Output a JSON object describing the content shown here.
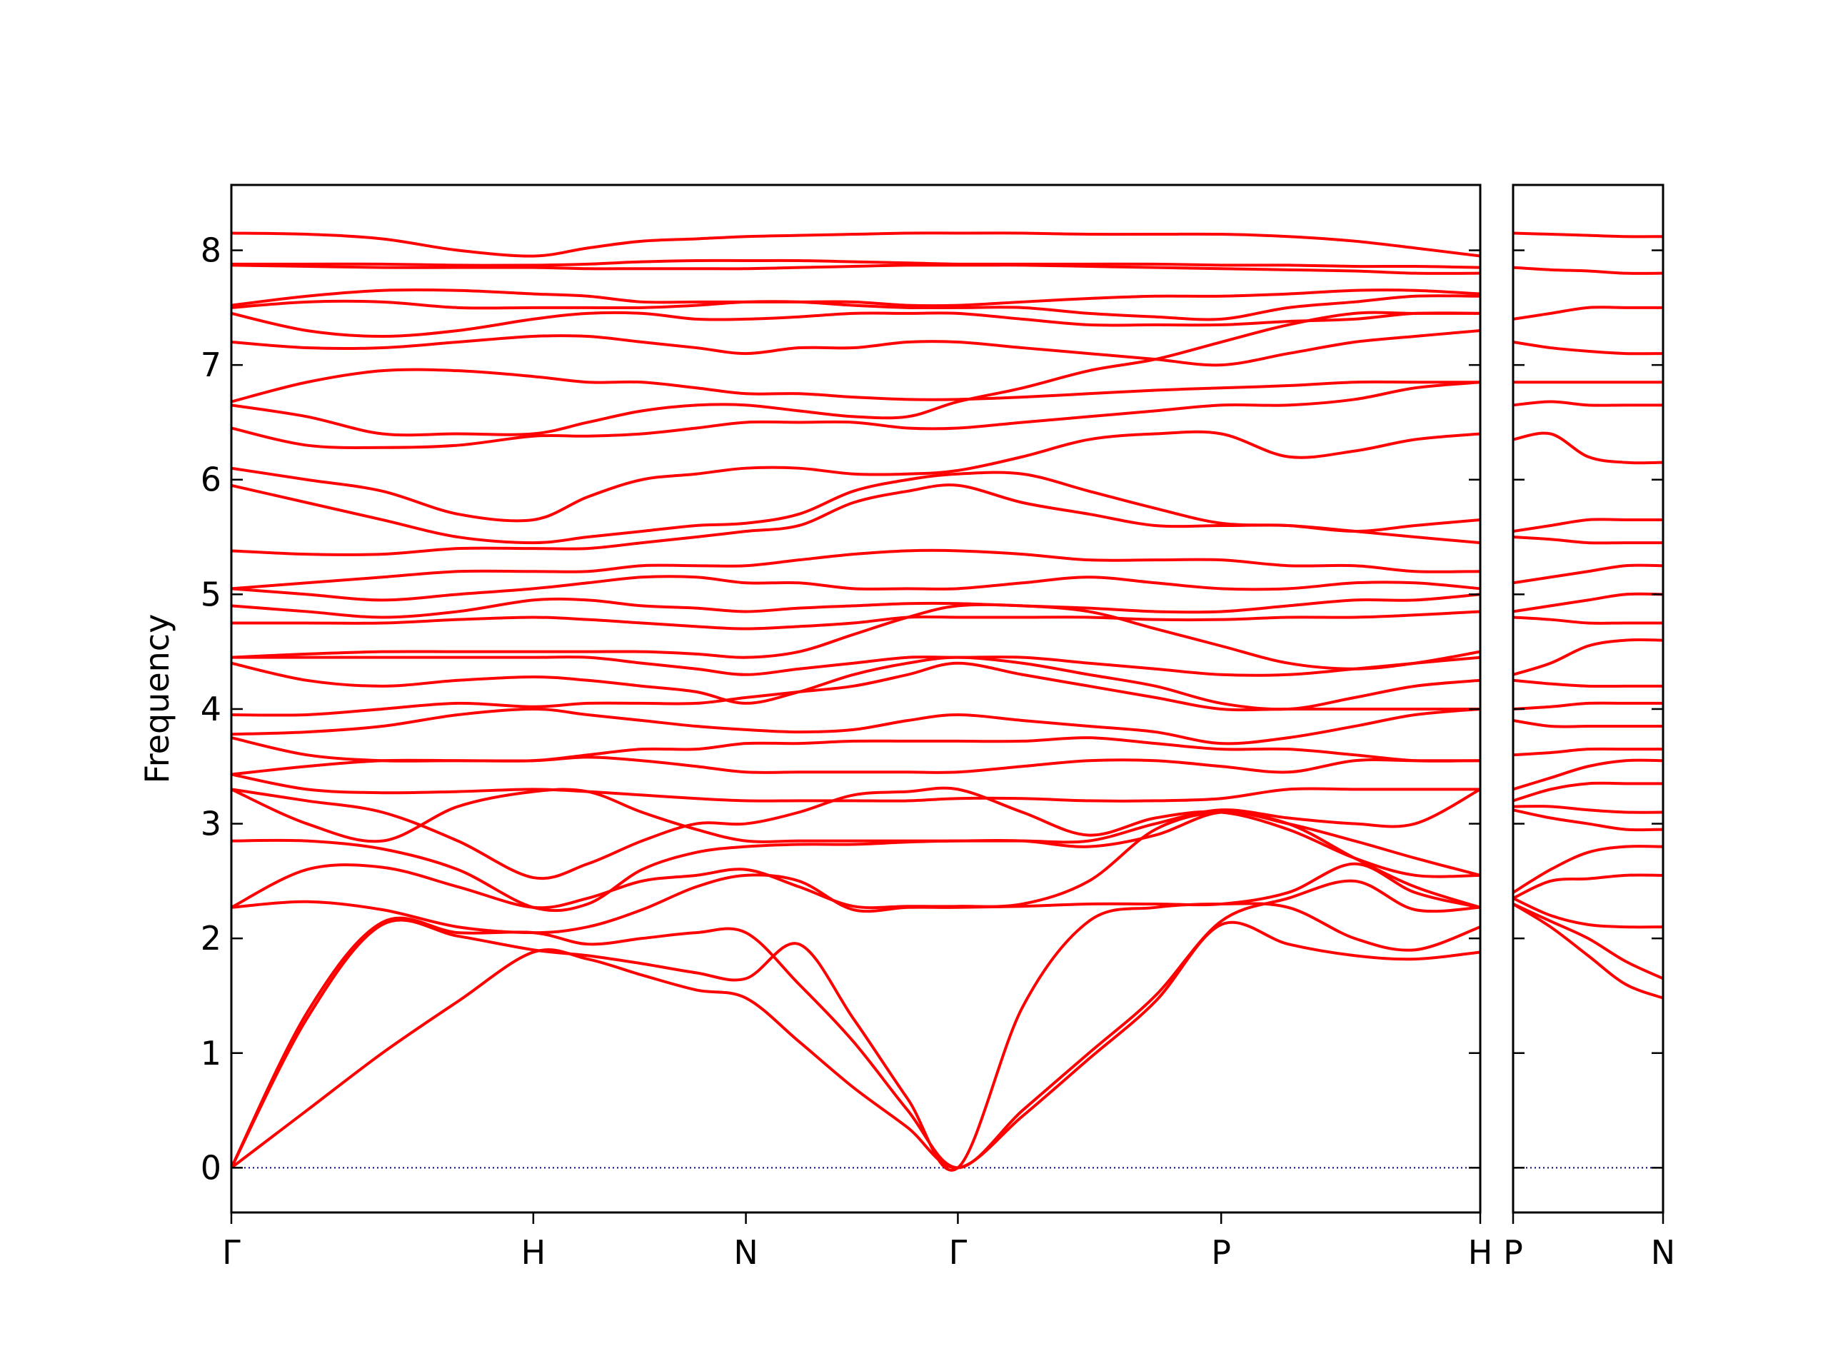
{
  "chart_data": [
    {
      "type": "line",
      "ylabel": "Frequency",
      "color": "#ff0000",
      "hline": 0,
      "hline_color": "#00008b",
      "x": [
        0,
        0.125,
        0.25,
        0.375,
        0.5,
        0.59,
        0.68,
        0.77,
        0.852,
        0.94,
        1.03,
        1.12,
        1.203,
        1.31,
        1.42,
        1.53,
        1.639,
        1.75,
        1.86,
        1.96,
        2.068
      ],
      "xlim": [
        0,
        2.068
      ],
      "xticks": [
        {
          "value": 0,
          "label": "Γ"
        },
        {
          "value": 0.5,
          "label": "H"
        },
        {
          "value": 0.852,
          "label": "N"
        },
        {
          "value": 1.203,
          "label": "Γ"
        },
        {
          "value": 1.639,
          "label": "P"
        },
        {
          "value": 2.068,
          "label": "H"
        }
      ],
      "ylim": [
        -0.39,
        8.57
      ],
      "yticks": [
        0,
        1,
        2,
        3,
        4,
        5,
        6,
        7,
        8
      ],
      "show_ytick_labels": true,
      "series": [
        {
          "values": [
            0,
            0.5,
            1.0,
            1.45,
            1.88,
            1.82,
            1.68,
            1.55,
            1.48,
            1.1,
            0.7,
            0.35,
            0,
            0.45,
            0.95,
            1.45,
            2.12,
            1.95,
            1.85,
            1.82,
            1.88
          ]
        },
        {
          "values": [
            0,
            1.3,
            2.12,
            2.02,
            1.9,
            1.85,
            1.78,
            1.7,
            1.65,
            1.95,
            1.3,
            0.6,
            0,
            1.4,
            2.15,
            2.27,
            2.3,
            2.27,
            2.0,
            1.9,
            2.1
          ]
        },
        {
          "values": [
            0,
            1.35,
            2.14,
            2.05,
            2.05,
            1.95,
            2.0,
            2.05,
            2.05,
            1.6,
            1.1,
            0.5,
            0,
            0.5,
            1.0,
            1.5,
            2.15,
            2.35,
            2.5,
            2.25,
            2.27
          ]
        },
        {
          "values": [
            2.27,
            2.32,
            2.25,
            2.1,
            2.05,
            2.1,
            2.25,
            2.45,
            2.55,
            2.5,
            2.25,
            2.27,
            2.27,
            2.28,
            2.3,
            2.3,
            2.3,
            2.4,
            2.65,
            2.4,
            2.27
          ]
        },
        {
          "values": [
            2.27,
            2.6,
            2.62,
            2.45,
            2.27,
            2.35,
            2.5,
            2.55,
            2.6,
            2.45,
            2.28,
            2.28,
            2.28,
            2.3,
            2.5,
            2.95,
            3.1,
            3.0,
            2.7,
            2.45,
            2.27
          ]
        },
        {
          "values": [
            2.85,
            2.85,
            2.78,
            2.6,
            2.27,
            2.3,
            2.6,
            2.75,
            2.8,
            2.82,
            2.82,
            2.84,
            2.85,
            2.85,
            2.8,
            2.9,
            3.1,
            3.0,
            2.85,
            2.7,
            2.55
          ]
        },
        {
          "values": [
            3.3,
            3.0,
            2.85,
            3.15,
            3.28,
            3.28,
            3.1,
            2.95,
            2.85,
            2.85,
            2.85,
            2.85,
            2.85,
            2.85,
            2.85,
            3.0,
            3.12,
            3.05,
            3.0,
            3.0,
            3.3
          ]
        },
        {
          "values": [
            3.3,
            3.2,
            3.1,
            2.85,
            2.53,
            2.65,
            2.85,
            3.0,
            3.0,
            3.1,
            3.25,
            3.28,
            3.3,
            3.1,
            2.9,
            3.05,
            3.1,
            2.95,
            2.7,
            2.55,
            2.55
          ]
        },
        {
          "values": [
            3.43,
            3.3,
            3.27,
            3.28,
            3.3,
            3.28,
            3.25,
            3.22,
            3.2,
            3.2,
            3.2,
            3.2,
            3.22,
            3.22,
            3.2,
            3.2,
            3.22,
            3.3,
            3.3,
            3.3,
            3.3
          ]
        },
        {
          "values": [
            3.43,
            3.5,
            3.55,
            3.55,
            3.55,
            3.58,
            3.55,
            3.5,
            3.45,
            3.45,
            3.45,
            3.45,
            3.45,
            3.5,
            3.55,
            3.55,
            3.5,
            3.45,
            3.55,
            3.55,
            3.55
          ]
        },
        {
          "values": [
            3.75,
            3.6,
            3.55,
            3.55,
            3.55,
            3.6,
            3.65,
            3.65,
            3.7,
            3.7,
            3.72,
            3.72,
            3.72,
            3.72,
            3.75,
            3.7,
            3.65,
            3.65,
            3.6,
            3.55,
            3.55
          ]
        },
        {
          "values": [
            3.78,
            3.8,
            3.85,
            3.95,
            4.0,
            3.95,
            3.9,
            3.85,
            3.82,
            3.8,
            3.82,
            3.9,
            3.95,
            3.9,
            3.85,
            3.8,
            3.7,
            3.75,
            3.85,
            3.95,
            4.0
          ]
        },
        {
          "values": [
            3.95,
            3.95,
            4.0,
            4.05,
            4.02,
            4.05,
            4.05,
            4.05,
            4.1,
            4.15,
            4.2,
            4.3,
            4.4,
            4.3,
            4.2,
            4.1,
            4.0,
            4.0,
            4.0,
            4.0,
            4.0
          ]
        },
        {
          "values": [
            4.4,
            4.25,
            4.2,
            4.25,
            4.28,
            4.25,
            4.2,
            4.15,
            4.05,
            4.15,
            4.3,
            4.4,
            4.45,
            4.4,
            4.3,
            4.2,
            4.05,
            4.0,
            4.1,
            4.2,
            4.25
          ]
        },
        {
          "values": [
            4.45,
            4.45,
            4.45,
            4.45,
            4.45,
            4.45,
            4.4,
            4.35,
            4.3,
            4.35,
            4.4,
            4.45,
            4.45,
            4.45,
            4.4,
            4.35,
            4.3,
            4.3,
            4.35,
            4.4,
            4.45
          ]
        },
        {
          "values": [
            4.45,
            4.48,
            4.5,
            4.5,
            4.5,
            4.5,
            4.5,
            4.48,
            4.45,
            4.5,
            4.65,
            4.8,
            4.9,
            4.9,
            4.85,
            4.7,
            4.55,
            4.4,
            4.35,
            4.4,
            4.5
          ]
        },
        {
          "values": [
            4.75,
            4.75,
            4.75,
            4.78,
            4.8,
            4.78,
            4.75,
            4.72,
            4.7,
            4.72,
            4.75,
            4.8,
            4.8,
            4.8,
            4.8,
            4.78,
            4.78,
            4.8,
            4.8,
            4.82,
            4.85
          ]
        },
        {
          "values": [
            4.9,
            4.85,
            4.8,
            4.85,
            4.95,
            4.95,
            4.9,
            4.88,
            4.85,
            4.88,
            4.9,
            4.92,
            4.92,
            4.9,
            4.88,
            4.85,
            4.85,
            4.9,
            4.95,
            4.95,
            5.0
          ]
        },
        {
          "values": [
            5.05,
            5.0,
            4.95,
            5.0,
            5.05,
            5.1,
            5.15,
            5.15,
            5.1,
            5.1,
            5.05,
            5.05,
            5.05,
            5.1,
            5.15,
            5.1,
            5.05,
            5.05,
            5.1,
            5.1,
            5.05
          ]
        },
        {
          "values": [
            5.05,
            5.1,
            5.15,
            5.2,
            5.2,
            5.2,
            5.25,
            5.25,
            5.25,
            5.3,
            5.35,
            5.38,
            5.38,
            5.35,
            5.3,
            5.3,
            5.3,
            5.25,
            5.25,
            5.2,
            5.2
          ]
        },
        {
          "values": [
            5.38,
            5.35,
            5.35,
            5.4,
            5.4,
            5.4,
            5.45,
            5.5,
            5.55,
            5.6,
            5.8,
            5.9,
            5.95,
            5.8,
            5.7,
            5.6,
            5.6,
            5.6,
            5.55,
            5.5,
            5.45
          ]
        },
        {
          "values": [
            5.95,
            5.8,
            5.65,
            5.5,
            5.45,
            5.5,
            5.55,
            5.6,
            5.62,
            5.7,
            5.9,
            6.0,
            6.05,
            6.05,
            5.9,
            5.75,
            5.62,
            5.6,
            5.55,
            5.6,
            5.65
          ]
        },
        {
          "values": [
            6.1,
            6.0,
            5.9,
            5.7,
            5.65,
            5.85,
            6.0,
            6.05,
            6.1,
            6.1,
            6.05,
            6.05,
            6.08,
            6.2,
            6.35,
            6.4,
            6.4,
            6.2,
            6.25,
            6.35,
            6.4
          ]
        },
        {
          "values": [
            6.45,
            6.3,
            6.28,
            6.3,
            6.38,
            6.38,
            6.4,
            6.45,
            6.5,
            6.5,
            6.5,
            6.45,
            6.45,
            6.5,
            6.55,
            6.6,
            6.65,
            6.65,
            6.7,
            6.8,
            6.85
          ]
        },
        {
          "values": [
            6.65,
            6.55,
            6.4,
            6.4,
            6.4,
            6.5,
            6.6,
            6.65,
            6.65,
            6.6,
            6.55,
            6.55,
            6.68,
            6.8,
            6.95,
            7.05,
            7.2,
            7.35,
            7.45,
            7.45,
            7.45
          ]
        },
        {
          "values": [
            6.68,
            6.85,
            6.95,
            6.95,
            6.9,
            6.85,
            6.85,
            6.8,
            6.75,
            6.75,
            6.72,
            6.7,
            6.7,
            6.72,
            6.75,
            6.78,
            6.8,
            6.82,
            6.85,
            6.85,
            6.85
          ]
        },
        {
          "values": [
            7.2,
            7.15,
            7.15,
            7.2,
            7.25,
            7.25,
            7.2,
            7.15,
            7.1,
            7.15,
            7.15,
            7.2,
            7.2,
            7.15,
            7.1,
            7.05,
            7.0,
            7.1,
            7.2,
            7.25,
            7.3
          ]
        },
        {
          "values": [
            7.45,
            7.3,
            7.25,
            7.3,
            7.4,
            7.45,
            7.45,
            7.4,
            7.4,
            7.42,
            7.45,
            7.45,
            7.45,
            7.4,
            7.35,
            7.35,
            7.35,
            7.38,
            7.4,
            7.45,
            7.45
          ]
        },
        {
          "values": [
            7.5,
            7.55,
            7.55,
            7.5,
            7.5,
            7.5,
            7.5,
            7.52,
            7.55,
            7.55,
            7.52,
            7.5,
            7.5,
            7.5,
            7.45,
            7.42,
            7.4,
            7.5,
            7.55,
            7.6,
            7.6
          ]
        },
        {
          "values": [
            7.52,
            7.6,
            7.65,
            7.65,
            7.62,
            7.6,
            7.55,
            7.55,
            7.55,
            7.55,
            7.55,
            7.52,
            7.52,
            7.55,
            7.58,
            7.6,
            7.6,
            7.62,
            7.65,
            7.65,
            7.62
          ]
        },
        {
          "values": [
            7.87,
            7.86,
            7.85,
            7.85,
            7.85,
            7.84,
            7.84,
            7.84,
            7.84,
            7.85,
            7.86,
            7.87,
            7.87,
            7.87,
            7.86,
            7.85,
            7.84,
            7.83,
            7.82,
            7.8,
            7.8
          ]
        },
        {
          "values": [
            7.88,
            7.88,
            7.88,
            7.87,
            7.87,
            7.88,
            7.9,
            7.91,
            7.91,
            7.91,
            7.9,
            7.89,
            7.88,
            7.88,
            7.88,
            7.88,
            7.87,
            7.87,
            7.86,
            7.86,
            7.85
          ]
        },
        {
          "values": [
            8.15,
            8.14,
            8.1,
            8.0,
            7.95,
            8.02,
            8.08,
            8.1,
            8.12,
            8.13,
            8.14,
            8.15,
            8.15,
            8.15,
            8.14,
            8.14,
            8.14,
            8.12,
            8.08,
            8.02,
            7.95
          ]
        }
      ]
    },
    {
      "type": "line",
      "color": "#ff0000",
      "hline": 0,
      "hline_color": "#00008b",
      "x": [
        0,
        0.062,
        0.124,
        0.186,
        0.248
      ],
      "xlim": [
        0,
        0.248
      ],
      "xticks": [
        {
          "value": 0,
          "label": "P"
        },
        {
          "value": 0.248,
          "label": "N"
        }
      ],
      "ylim": [
        -0.39,
        8.57
      ],
      "yticks": [
        0,
        1,
        2,
        3,
        4,
        5,
        6,
        7,
        8
      ],
      "show_ytick_labels": false,
      "series": [
        {
          "values": [
            2.3,
            2.1,
            1.85,
            1.6,
            1.48
          ]
        },
        {
          "values": [
            2.3,
            2.15,
            2.0,
            1.8,
            1.65
          ]
        },
        {
          "values": [
            2.35,
            2.2,
            2.12,
            2.1,
            2.1
          ]
        },
        {
          "values": [
            2.35,
            2.5,
            2.52,
            2.55,
            2.55
          ]
        },
        {
          "values": [
            2.4,
            2.6,
            2.75,
            2.8,
            2.8
          ]
        },
        {
          "values": [
            3.12,
            3.05,
            3.0,
            2.95,
            2.95
          ]
        },
        {
          "values": [
            3.15,
            3.15,
            3.12,
            3.1,
            3.1
          ]
        },
        {
          "values": [
            3.2,
            3.3,
            3.35,
            3.35,
            3.35
          ]
        },
        {
          "values": [
            3.3,
            3.4,
            3.5,
            3.55,
            3.55
          ]
        },
        {
          "values": [
            3.6,
            3.62,
            3.65,
            3.65,
            3.65
          ]
        },
        {
          "values": [
            3.9,
            3.85,
            3.85,
            3.85,
            3.85
          ]
        },
        {
          "values": [
            4.0,
            4.02,
            4.05,
            4.05,
            4.05
          ]
        },
        {
          "values": [
            4.25,
            4.22,
            4.2,
            4.2,
            4.2
          ]
        },
        {
          "values": [
            4.3,
            4.4,
            4.55,
            4.6,
            4.6
          ]
        },
        {
          "values": [
            4.8,
            4.78,
            4.75,
            4.75,
            4.75
          ]
        },
        {
          "values": [
            4.85,
            4.9,
            4.95,
            5.0,
            5.0
          ]
        },
        {
          "values": [
            5.1,
            5.15,
            5.2,
            5.25,
            5.25
          ]
        },
        {
          "values": [
            5.5,
            5.48,
            5.45,
            5.45,
            5.45
          ]
        },
        {
          "values": [
            5.55,
            5.6,
            5.65,
            5.65,
            5.65
          ]
        },
        {
          "values": [
            6.35,
            6.4,
            6.2,
            6.15,
            6.15
          ]
        },
        {
          "values": [
            6.65,
            6.68,
            6.65,
            6.65,
            6.65
          ]
        },
        {
          "values": [
            6.85,
            6.85,
            6.85,
            6.85,
            6.85
          ]
        },
        {
          "values": [
            7.2,
            7.15,
            7.12,
            7.1,
            7.1
          ]
        },
        {
          "values": [
            7.4,
            7.45,
            7.5,
            7.5,
            7.5
          ]
        },
        {
          "values": [
            7.85,
            7.83,
            7.82,
            7.8,
            7.8
          ]
        },
        {
          "values": [
            8.15,
            8.14,
            8.13,
            8.12,
            8.12
          ]
        }
      ]
    }
  ]
}
